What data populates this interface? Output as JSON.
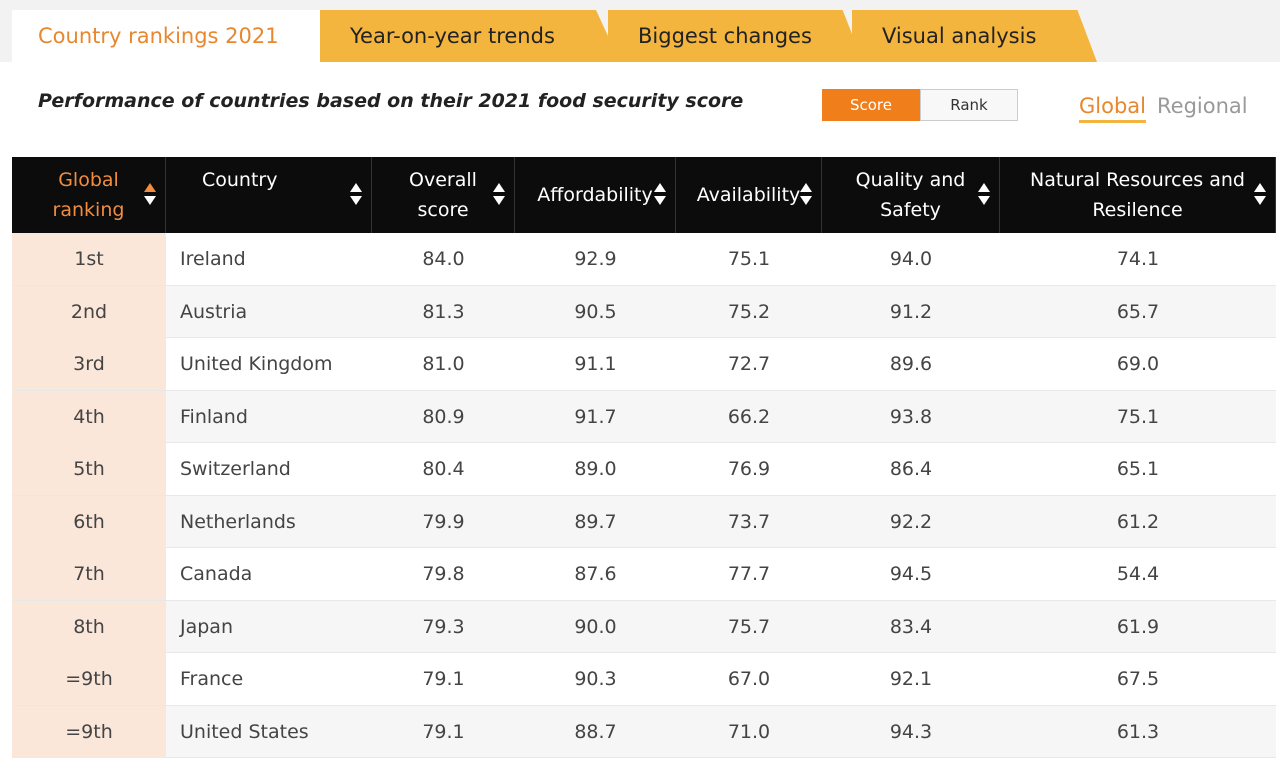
{
  "tabs": [
    "Country rankings 2021",
    "Year-on-year trends",
    "Biggest changes",
    "Visual analysis"
  ],
  "subtitle": "Performance of countries based on their 2021 food security score",
  "toggle": [
    "Score",
    "Rank"
  ],
  "scope": [
    "Global",
    "Regional"
  ],
  "table": {
    "headers": [
      [
        "Global",
        "ranking"
      ],
      [
        "Country"
      ],
      [
        "Overall",
        "score"
      ],
      [
        "Affordability"
      ],
      [
        "Availability"
      ],
      [
        "Quality and",
        "Safety"
      ],
      [
        "Natural Resources and",
        "Resilence"
      ]
    ],
    "rows": [
      [
        "1st",
        "Ireland",
        "84.0",
        "92.9",
        "75.1",
        "94.0",
        "74.1"
      ],
      [
        "2nd",
        "Austria",
        "81.3",
        "90.5",
        "75.2",
        "91.2",
        "65.7"
      ],
      [
        "3rd",
        "United Kingdom",
        "81.0",
        "91.1",
        "72.7",
        "89.6",
        "69.0"
      ],
      [
        "4th",
        "Finland",
        "80.9",
        "91.7",
        "66.2",
        "93.8",
        "75.1"
      ],
      [
        "5th",
        "Switzerland",
        "80.4",
        "89.0",
        "76.9",
        "86.4",
        "65.1"
      ],
      [
        "6th",
        "Netherlands",
        "79.9",
        "89.7",
        "73.7",
        "92.2",
        "61.2"
      ],
      [
        "7th",
        "Canada",
        "79.8",
        "87.6",
        "77.7",
        "94.5",
        "54.4"
      ],
      [
        "8th",
        "Japan",
        "79.3",
        "90.0",
        "75.7",
        "83.4",
        "61.9"
      ],
      [
        "=9th",
        "France",
        "79.1",
        "90.3",
        "67.0",
        "92.1",
        "67.5"
      ],
      [
        "=9th",
        "United States",
        "79.1",
        "88.7",
        "71.0",
        "94.3",
        "61.3"
      ]
    ]
  }
}
